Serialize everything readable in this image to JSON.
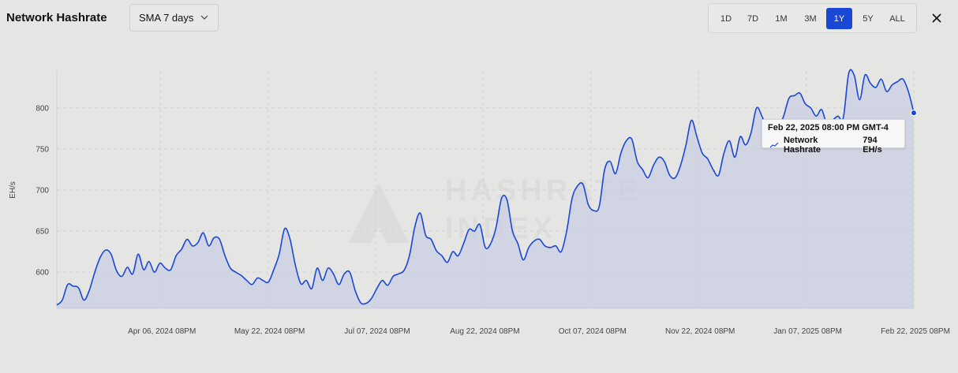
{
  "header": {
    "title": "Network Hashrate",
    "sma_select": "SMA 7 days",
    "ranges": [
      "1D",
      "7D",
      "1M",
      "3M",
      "1Y",
      "5Y",
      "ALL"
    ],
    "active_range": "1Y"
  },
  "watermark": {
    "line1": "HASHRATE",
    "line2": "INDEX"
  },
  "tooltip": {
    "date": "Feb 22, 2025 08:00 PM GMT-4",
    "series": "Network Hashrate",
    "value": "794 EH/s"
  },
  "colors": {
    "line": "#1a47d6",
    "fill": "#c9cee2",
    "accent": "#1a47d6"
  },
  "chart_data": {
    "type": "area",
    "ylabel": "EH/s",
    "y_ticks": [
      600,
      650,
      700,
      750,
      800
    ],
    "ylim": [
      556,
      845
    ],
    "x_ticks": [
      "Apr 06, 2024 08PM",
      "May 22, 2024 08PM",
      "Jul 07, 2024 08PM",
      "Aug 22, 2024 08PM",
      "Oct 07, 2024 08PM",
      "Nov 22, 2024 08PM",
      "Jan 07, 2025 08PM",
      "Feb 22, 2025 08PM"
    ],
    "grid": true,
    "series": [
      {
        "name": "Network Hashrate",
        "x_start": "Feb 22, 2024",
        "x_end": "Feb 22, 2025",
        "values": [
          560,
          566,
          585,
          583,
          581,
          566,
          578,
          600,
          618,
          627,
          622,
          602,
          595,
          606,
          598,
          622,
          603,
          613,
          600,
          611,
          605,
          603,
          620,
          628,
          640,
          632,
          636,
          648,
          632,
          642,
          640,
          620,
          605,
          600,
          596,
          590,
          585,
          593,
          590,
          588,
          603,
          622,
          653,
          640,
          608,
          586,
          590,
          580,
          605,
          590,
          605,
          598,
          585,
          598,
          600,
          578,
          563,
          562,
          568,
          580,
          590,
          584,
          595,
          598,
          602,
          620,
          655,
          672,
          645,
          640,
          626,
          620,
          612,
          625,
          620,
          635,
          652,
          650,
          658,
          630,
          635,
          655,
          690,
          688,
          650,
          635,
          615,
          630,
          638,
          640,
          632,
          630,
          632,
          625,
          650,
          690,
          705,
          707,
          682,
          675,
          680,
          725,
          735,
          720,
          745,
          760,
          762,
          735,
          725,
          715,
          730,
          740,
          735,
          718,
          715,
          730,
          755,
          785,
          765,
          745,
          738,
          725,
          718,
          745,
          760,
          740,
          765,
          755,
          770,
          800,
          790,
          775,
          785,
          777,
          790,
          812,
          815,
          818,
          805,
          800,
          790,
          798,
          780,
          785,
          790,
          788,
          842,
          840,
          810,
          840,
          830,
          825,
          835,
          820,
          828,
          832,
          835,
          820,
          794
        ]
      }
    ]
  }
}
